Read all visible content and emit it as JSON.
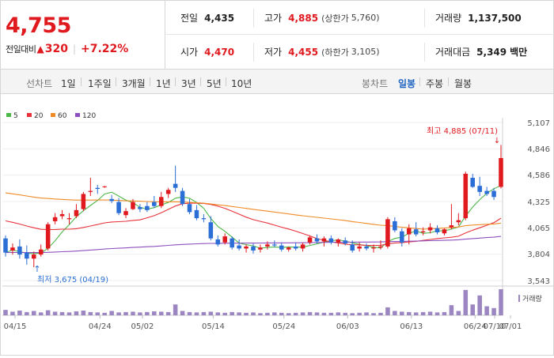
{
  "header": {
    "price": "4,755",
    "change_label": "전일대비",
    "change_value": "320",
    "change_pct": "+7.22%",
    "prev_close": {
      "label": "전일",
      "value": "4,435"
    },
    "high": {
      "label": "고가",
      "value": "4,885",
      "limit_label": "(상한가",
      "limit_value": "5,760)"
    },
    "volume": {
      "label": "거래량",
      "value": "1,137,500"
    },
    "open": {
      "label": "시가",
      "value": "4,470"
    },
    "low": {
      "label": "저가",
      "value": "4,455",
      "limit_label": "(하한가",
      "limit_value": "3,105)"
    },
    "amount": {
      "label": "거래대금",
      "value": "5,349",
      "unit": "백만"
    }
  },
  "toolbar": {
    "line_label": "선차트",
    "line_periods": [
      "1일",
      "1주일",
      "3개월",
      "1년",
      "3년",
      "5년",
      "10년"
    ],
    "candle_label": "봉차트",
    "candle_periods": [
      "일봉",
      "주봉",
      "월봉"
    ],
    "active_candle": "일봉"
  },
  "colors": {
    "up": "#e0191f",
    "down": "#2b6fd6",
    "ma5": "#4cb848",
    "ma20": "#e8323a",
    "ma60": "#f08a24",
    "ma120": "#8d4fbf",
    "volume": "#9b86c2"
  },
  "chart_data": {
    "type": "candlestick",
    "legend": [
      "5",
      "20",
      "60",
      "120"
    ],
    "y_ticks": [
      "5,107",
      "4,846",
      "4,586",
      "4,325",
      "4,065",
      "3,804",
      "3,543"
    ],
    "ylim": [
      3543,
      5107
    ],
    "x_ticks": [
      "04/15",
      "04/24",
      "05/02",
      "05/14",
      "05/24",
      "06/03",
      "06/13",
      "06/24",
      "07/01",
      "07/10"
    ],
    "high_annotation": "최고 4,885 (07/11)",
    "low_annotation": "최저 3,675 (04/19)",
    "volume_label": "거래량",
    "candles": [
      {
        "o": 3960,
        "h": 3990,
        "l": 3780,
        "c": 3820
      },
      {
        "o": 3840,
        "h": 3910,
        "l": 3800,
        "c": 3870
      },
      {
        "o": 3880,
        "h": 3950,
        "l": 3760,
        "c": 3800
      },
      {
        "o": 3820,
        "h": 3890,
        "l": 3700,
        "c": 3760
      },
      {
        "o": 3760,
        "h": 3830,
        "l": 3675,
        "c": 3800
      },
      {
        "o": 3800,
        "h": 3900,
        "l": 3780,
        "c": 3850
      },
      {
        "o": 3860,
        "h": 4120,
        "l": 3840,
        "c": 4100
      },
      {
        "o": 4130,
        "h": 4210,
        "l": 4100,
        "c": 4170
      },
      {
        "o": 4180,
        "h": 4240,
        "l": 4150,
        "c": 4200
      },
      {
        "o": 4150,
        "h": 4210,
        "l": 4100,
        "c": 4160
      },
      {
        "o": 4180,
        "h": 4300,
        "l": 4160,
        "c": 4240
      },
      {
        "o": 4250,
        "h": 4420,
        "l": 4230,
        "c": 4400
      },
      {
        "o": 4420,
        "h": 4560,
        "l": 4380,
        "c": 4430
      },
      {
        "o": 4460,
        "h": 4490,
        "l": 4400,
        "c": 4450
      },
      {
        "o": 4470,
        "h": 4480,
        "l": 4460,
        "c": 4475
      },
      {
        "o": 4350,
        "h": 4390,
        "l": 4310,
        "c": 4330
      },
      {
        "o": 4320,
        "h": 4360,
        "l": 4190,
        "c": 4210
      },
      {
        "o": 4190,
        "h": 4260,
        "l": 4160,
        "c": 4230
      },
      {
        "o": 4250,
        "h": 4350,
        "l": 4240,
        "c": 4320
      },
      {
        "o": 4270,
        "h": 4300,
        "l": 4220,
        "c": 4250
      },
      {
        "o": 4280,
        "h": 4320,
        "l": 4220,
        "c": 4240
      },
      {
        "o": 4320,
        "h": 4380,
        "l": 4260,
        "c": 4280
      },
      {
        "o": 4280,
        "h": 4420,
        "l": 4260,
        "c": 4370
      },
      {
        "o": 4400,
        "h": 4460,
        "l": 4360,
        "c": 4440
      },
      {
        "o": 4500,
        "h": 4680,
        "l": 4420,
        "c": 4460
      },
      {
        "o": 4430,
        "h": 4460,
        "l": 4280,
        "c": 4300
      },
      {
        "o": 4300,
        "h": 4350,
        "l": 4200,
        "c": 4220
      },
      {
        "o": 4240,
        "h": 4290,
        "l": 4140,
        "c": 4160
      },
      {
        "o": 4160,
        "h": 4200,
        "l": 4120,
        "c": 4150
      },
      {
        "o": 4120,
        "h": 4180,
        "l": 3940,
        "c": 3960
      },
      {
        "o": 3950,
        "h": 3990,
        "l": 3880,
        "c": 3900
      },
      {
        "o": 3920,
        "h": 4010,
        "l": 3900,
        "c": 3980
      },
      {
        "o": 3960,
        "h": 3980,
        "l": 3850,
        "c": 3870
      },
      {
        "o": 3890,
        "h": 3950,
        "l": 3840,
        "c": 3860
      },
      {
        "o": 3860,
        "h": 3900,
        "l": 3820,
        "c": 3880
      },
      {
        "o": 3880,
        "h": 3910,
        "l": 3810,
        "c": 3840
      },
      {
        "o": 3850,
        "h": 3900,
        "l": 3820,
        "c": 3870
      },
      {
        "o": 3880,
        "h": 3930,
        "l": 3850,
        "c": 3900
      },
      {
        "o": 3900,
        "h": 3940,
        "l": 3870,
        "c": 3890
      },
      {
        "o": 3890,
        "h": 3920,
        "l": 3830,
        "c": 3850
      },
      {
        "o": 3850,
        "h": 3880,
        "l": 3830,
        "c": 3870
      },
      {
        "o": 3880,
        "h": 3920,
        "l": 3840,
        "c": 3860
      },
      {
        "o": 3860,
        "h": 3920,
        "l": 3830,
        "c": 3900
      },
      {
        "o": 3920,
        "h": 3990,
        "l": 3900,
        "c": 3970
      },
      {
        "o": 3960,
        "h": 4000,
        "l": 3910,
        "c": 3930
      },
      {
        "o": 3930,
        "h": 3980,
        "l": 3880,
        "c": 3960
      },
      {
        "o": 3960,
        "h": 3990,
        "l": 3900,
        "c": 3920
      },
      {
        "o": 3920,
        "h": 3960,
        "l": 3880,
        "c": 3950
      },
      {
        "o": 3940,
        "h": 3970,
        "l": 3890,
        "c": 3910
      },
      {
        "o": 3900,
        "h": 3940,
        "l": 3820,
        "c": 3840
      },
      {
        "o": 3860,
        "h": 3920,
        "l": 3830,
        "c": 3880
      },
      {
        "o": 3880,
        "h": 3910,
        "l": 3840,
        "c": 3860
      },
      {
        "o": 3860,
        "h": 3900,
        "l": 3820,
        "c": 3870
      },
      {
        "o": 3870,
        "h": 3940,
        "l": 3850,
        "c": 3880
      },
      {
        "o": 3880,
        "h": 4170,
        "l": 3860,
        "c": 4150
      },
      {
        "o": 4130,
        "h": 4170,
        "l": 4020,
        "c": 4040
      },
      {
        "o": 4030,
        "h": 4060,
        "l": 3880,
        "c": 3920
      },
      {
        "o": 4000,
        "h": 4100,
        "l": 3900,
        "c": 4060
      },
      {
        "o": 4050,
        "h": 4120,
        "l": 3980,
        "c": 4000
      },
      {
        "o": 4020,
        "h": 4070,
        "l": 3990,
        "c": 4030
      },
      {
        "o": 4040,
        "h": 4110,
        "l": 4010,
        "c": 4070
      },
      {
        "o": 4060,
        "h": 4090,
        "l": 4000,
        "c": 4020
      },
      {
        "o": 4010,
        "h": 4060,
        "l": 3990,
        "c": 4050
      },
      {
        "o": 4070,
        "h": 4300,
        "l": 4050,
        "c": 4090
      },
      {
        "o": 4120,
        "h": 4210,
        "l": 4090,
        "c": 4140
      },
      {
        "o": 4160,
        "h": 4620,
        "l": 4140,
        "c": 4600
      },
      {
        "o": 4560,
        "h": 4600,
        "l": 4460,
        "c": 4470
      },
      {
        "o": 4480,
        "h": 4570,
        "l": 4380,
        "c": 4420
      },
      {
        "o": 4430,
        "h": 4470,
        "l": 4380,
        "c": 4400
      },
      {
        "o": 4430,
        "h": 4460,
        "l": 4340,
        "c": 4370
      },
      {
        "o": 4470,
        "h": 4885,
        "l": 4455,
        "c": 4755
      }
    ],
    "volumes": [
      15,
      10,
      13,
      9,
      12,
      8,
      14,
      10,
      9,
      8,
      11,
      13,
      9,
      8,
      7,
      12,
      8,
      9,
      10,
      8,
      9,
      11,
      10,
      9,
      30,
      12,
      9,
      8,
      9,
      10,
      8,
      7,
      9,
      8,
      7,
      8,
      6,
      7,
      8,
      7,
      6,
      7,
      8,
      9,
      8,
      7,
      7,
      8,
      7,
      6,
      7,
      8,
      6,
      7,
      22,
      12,
      10,
      9,
      8,
      9,
      10,
      8,
      9,
      28,
      12,
      70,
      30,
      55,
      25,
      20,
      72
    ],
    "vol_max": 72
  }
}
